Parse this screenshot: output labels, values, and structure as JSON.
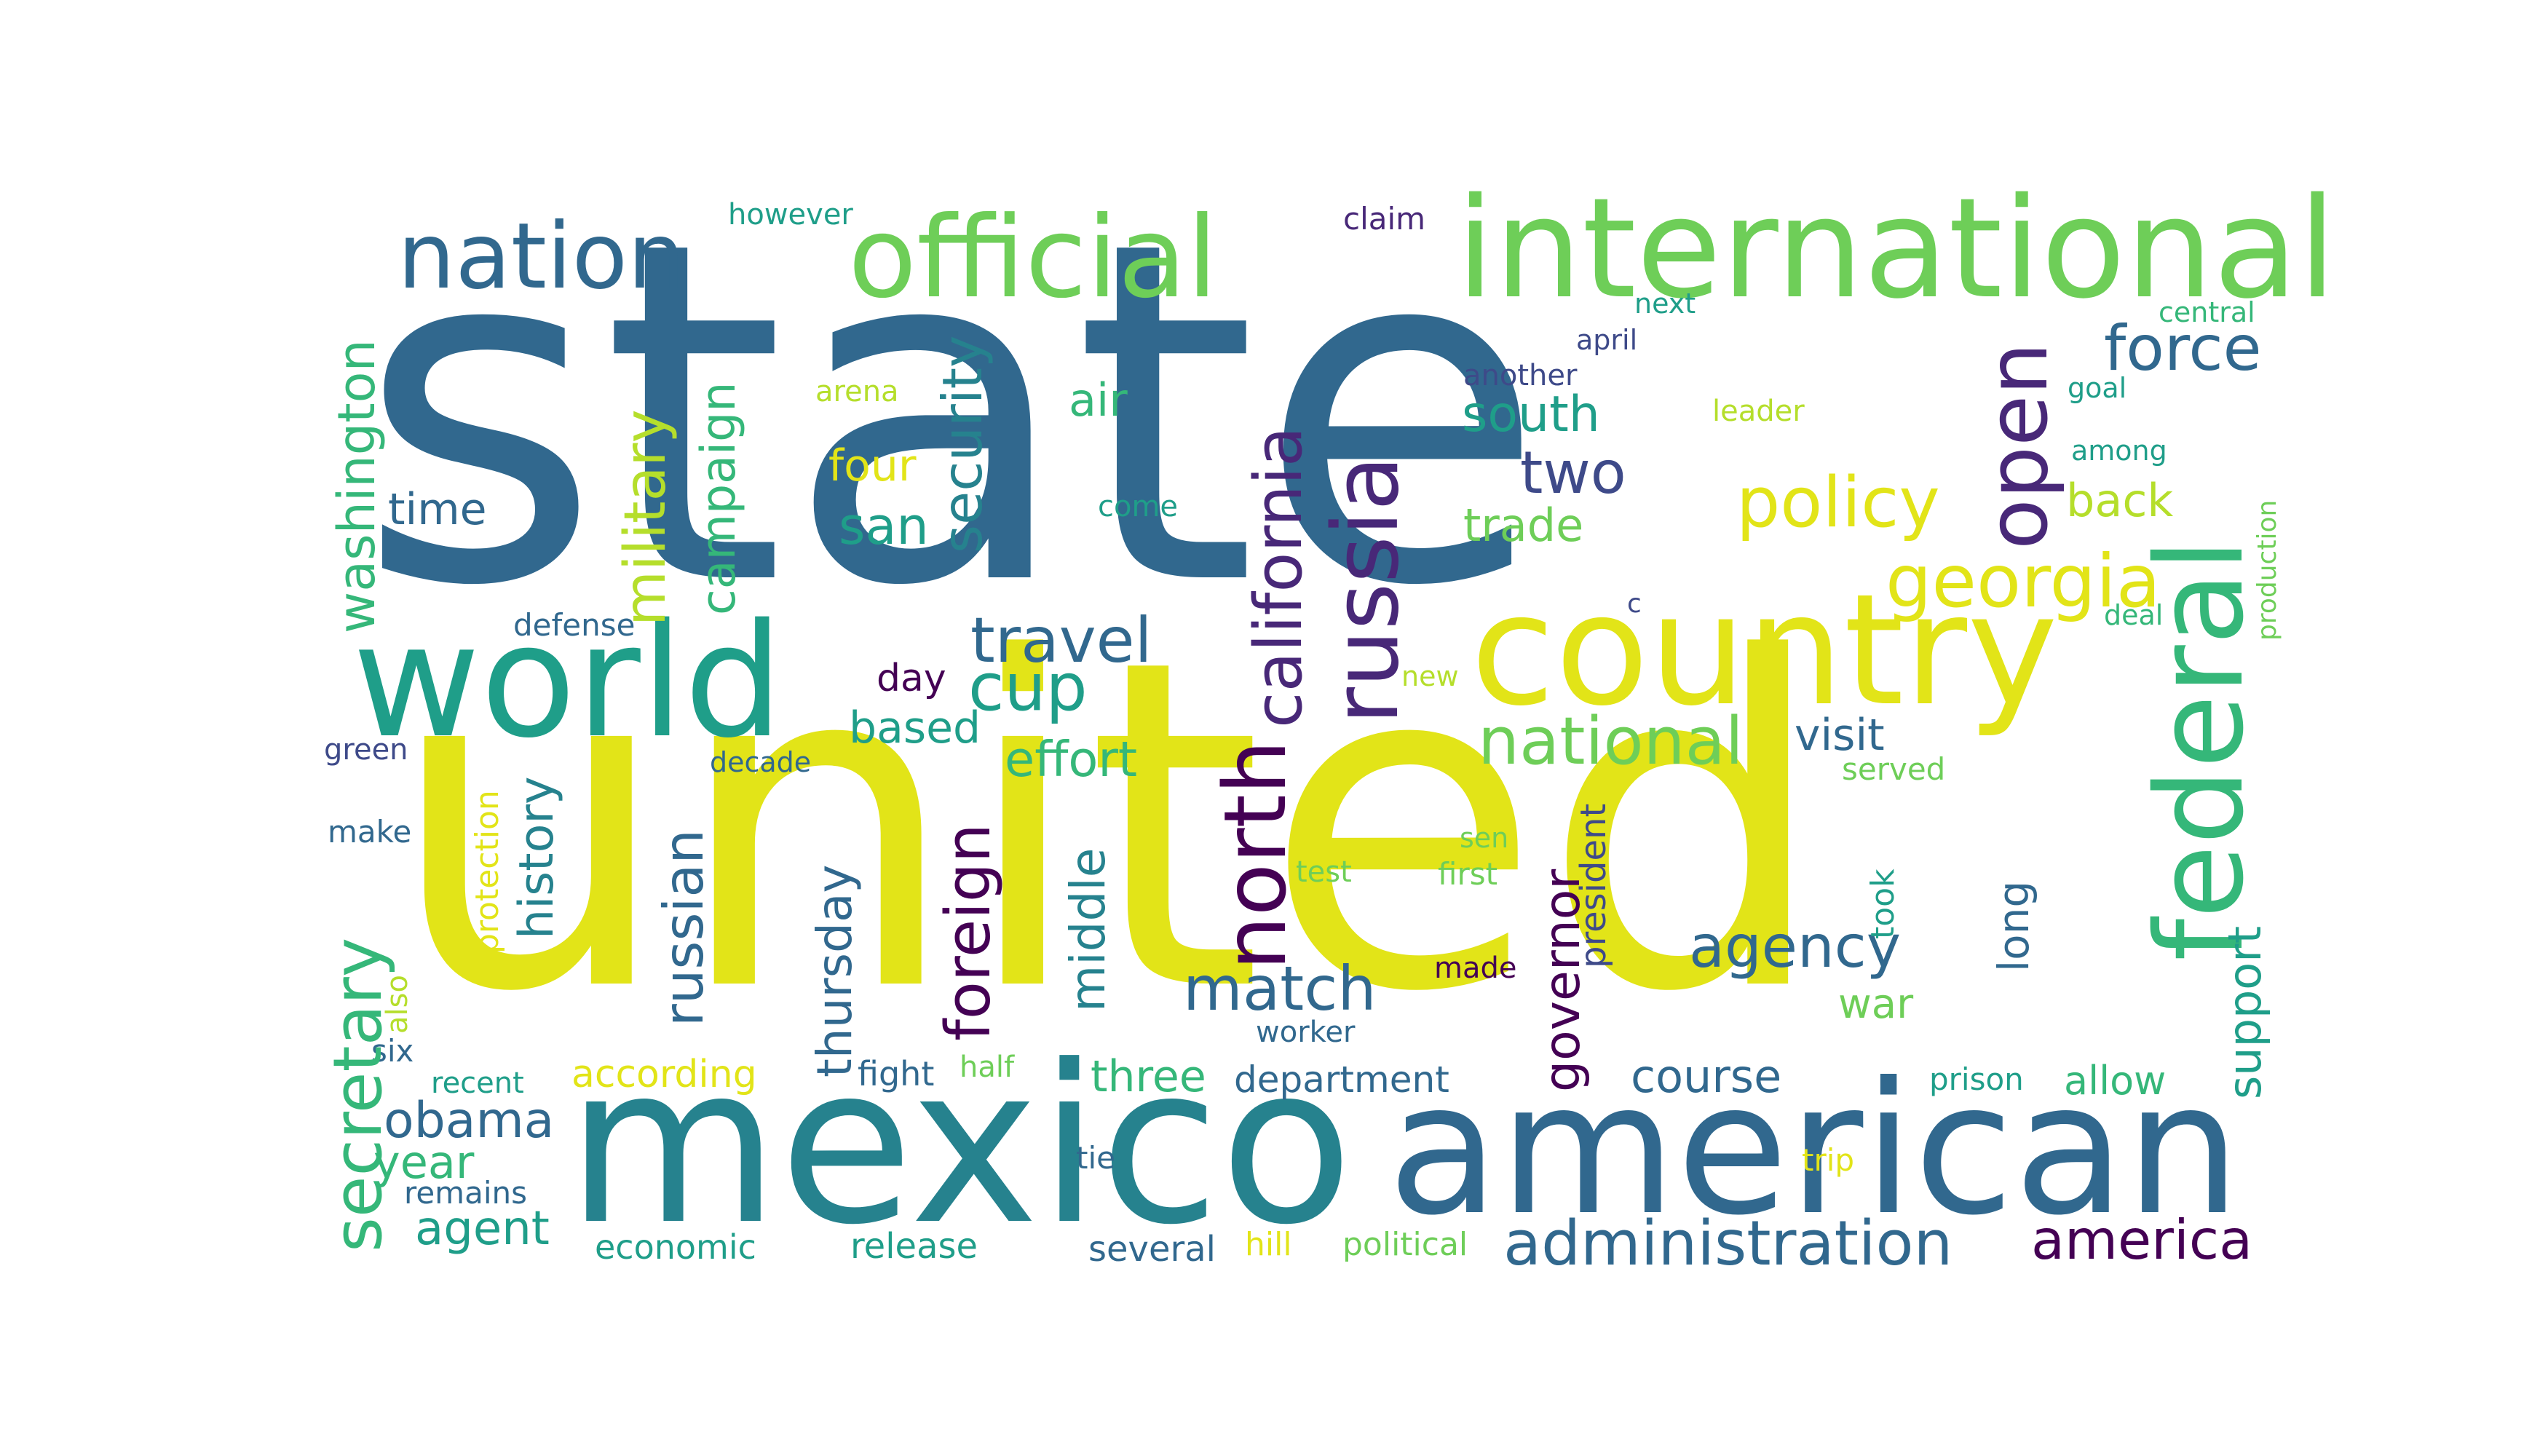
{
  "palette": {
    "c1": "#440154",
    "c2": "#482878",
    "c3": "#3e4a89",
    "c4": "#31688e",
    "c5": "#26828e",
    "c6": "#1f9e89",
    "c7": "#35b779",
    "c8": "#6ece58",
    "c9": "#b5de2b",
    "c10": "#e2e418"
  },
  "words": [
    {
      "text": "state",
      "color": "c4",
      "orient": "h"
    },
    {
      "text": "united",
      "color": "c10",
      "orient": "h"
    },
    {
      "text": "mexico",
      "color": "c5",
      "orient": "h"
    },
    {
      "text": "american",
      "color": "c4",
      "orient": "h"
    },
    {
      "text": "international",
      "color": "c8",
      "orient": "h"
    },
    {
      "text": "official",
      "color": "c8",
      "orient": "h"
    },
    {
      "text": "nation",
      "color": "c4",
      "orient": "h"
    },
    {
      "text": "world",
      "color": "c6",
      "orient": "h"
    },
    {
      "text": "country",
      "color": "c10",
      "orient": "h"
    },
    {
      "text": "federal",
      "color": "c7",
      "orient": "v"
    },
    {
      "text": "russia",
      "color": "c2",
      "orient": "v"
    },
    {
      "text": "north",
      "color": "c1",
      "orient": "v"
    },
    {
      "text": "open",
      "color": "c2",
      "orient": "v"
    },
    {
      "text": "california",
      "color": "c2",
      "orient": "v"
    },
    {
      "text": "georgia",
      "color": "c10",
      "orient": "h"
    },
    {
      "text": "administration",
      "color": "c4",
      "orient": "h"
    },
    {
      "text": "policy",
      "color": "c10",
      "orient": "h"
    },
    {
      "text": "national",
      "color": "c8",
      "orient": "h"
    },
    {
      "text": "force",
      "color": "c4",
      "orient": "h"
    },
    {
      "text": "travel",
      "color": "c4",
      "orient": "h"
    },
    {
      "text": "cup",
      "color": "c6",
      "orient": "h"
    },
    {
      "text": "match",
      "color": "c4",
      "orient": "h"
    },
    {
      "text": "agency",
      "color": "c4",
      "orient": "h"
    },
    {
      "text": "america",
      "color": "c1",
      "orient": "h"
    },
    {
      "text": "obama",
      "color": "c4",
      "orient": "h"
    },
    {
      "text": "two",
      "color": "c3",
      "orient": "h"
    },
    {
      "text": "san",
      "color": "c6",
      "orient": "h"
    },
    {
      "text": "effort",
      "color": "c7",
      "orient": "h"
    },
    {
      "text": "visit",
      "color": "c4",
      "orient": "h"
    },
    {
      "text": "course",
      "color": "c4",
      "orient": "h"
    },
    {
      "text": "south",
      "color": "c6",
      "orient": "h"
    },
    {
      "text": "trade",
      "color": "c8",
      "orient": "h"
    },
    {
      "text": "back",
      "color": "c9",
      "orient": "h"
    },
    {
      "text": "air",
      "color": "c7",
      "orient": "h"
    },
    {
      "text": "four",
      "color": "c10",
      "orient": "h"
    },
    {
      "text": "time",
      "color": "c4",
      "orient": "h"
    },
    {
      "text": "based",
      "color": "c6",
      "orient": "h"
    },
    {
      "text": "day",
      "color": "c1",
      "orient": "h"
    },
    {
      "text": "three",
      "color": "c7",
      "orient": "h"
    },
    {
      "text": "allow",
      "color": "c7",
      "orient": "h"
    },
    {
      "text": "year",
      "color": "c7",
      "orient": "h"
    },
    {
      "text": "agent",
      "color": "c6",
      "orient": "h"
    },
    {
      "text": "war",
      "color": "c8",
      "orient": "h"
    },
    {
      "text": "according",
      "color": "c10",
      "orient": "h"
    },
    {
      "text": "department",
      "color": "c4",
      "orient": "h"
    },
    {
      "text": "fight",
      "color": "c4",
      "orient": "h"
    },
    {
      "text": "release",
      "color": "c6",
      "orient": "h"
    },
    {
      "text": "several",
      "color": "c4",
      "orient": "h"
    },
    {
      "text": "economic",
      "color": "c6",
      "orient": "h"
    },
    {
      "text": "political",
      "color": "c8",
      "orient": "h"
    },
    {
      "text": "hill",
      "color": "c10",
      "orient": "h"
    },
    {
      "text": "remains",
      "color": "c4",
      "orient": "h"
    },
    {
      "text": "tie",
      "color": "c4",
      "orient": "h"
    },
    {
      "text": "trip",
      "color": "c10",
      "orient": "h"
    },
    {
      "text": "prison",
      "color": "c6",
      "orient": "h"
    },
    {
      "text": "recent",
      "color": "c6",
      "orient": "h"
    },
    {
      "text": "half",
      "color": "c8",
      "orient": "h"
    },
    {
      "text": "six",
      "color": "c4",
      "orient": "h"
    },
    {
      "text": "worker",
      "color": "c4",
      "orient": "h"
    },
    {
      "text": "made",
      "color": "c1",
      "orient": "h"
    },
    {
      "text": "test",
      "color": "c8",
      "orient": "h"
    },
    {
      "text": "first",
      "color": "c8",
      "orient": "h"
    },
    {
      "text": "sen",
      "color": "c8",
      "orient": "h"
    },
    {
      "text": "served",
      "color": "c8",
      "orient": "h"
    },
    {
      "text": "decade",
      "color": "c4",
      "orient": "h"
    },
    {
      "text": "make",
      "color": "c4",
      "orient": "h"
    },
    {
      "text": "green",
      "color": "c3",
      "orient": "h"
    },
    {
      "text": "defense",
      "color": "c4",
      "orient": "h"
    },
    {
      "text": "new",
      "color": "c9",
      "orient": "h"
    },
    {
      "text": "c",
      "color": "c3",
      "orient": "h"
    },
    {
      "text": "deal",
      "color": "c7",
      "orient": "h"
    },
    {
      "text": "among",
      "color": "c6",
      "orient": "h"
    },
    {
      "text": "goal",
      "color": "c6",
      "orient": "h"
    },
    {
      "text": "central",
      "color": "c7",
      "orient": "h"
    },
    {
      "text": "leader",
      "color": "c9",
      "orient": "h"
    },
    {
      "text": "april",
      "color": "c3",
      "orient": "h"
    },
    {
      "text": "another",
      "color": "c3",
      "orient": "h"
    },
    {
      "text": "next",
      "color": "c6",
      "orient": "h"
    },
    {
      "text": "claim",
      "color": "c2",
      "orient": "h"
    },
    {
      "text": "however",
      "color": "c6",
      "orient": "h"
    },
    {
      "text": "arena",
      "color": "c9",
      "orient": "h"
    },
    {
      "text": "come",
      "color": "c6",
      "orient": "h"
    },
    {
      "text": "washington",
      "color": "c7",
      "orient": "v"
    },
    {
      "text": "military",
      "color": "c9",
      "orient": "v"
    },
    {
      "text": "campaign",
      "color": "c7",
      "orient": "v"
    },
    {
      "text": "security",
      "color": "c5",
      "orient": "v"
    },
    {
      "text": "secretary",
      "color": "c7",
      "orient": "v"
    },
    {
      "text": "history",
      "color": "c5",
      "orient": "v"
    },
    {
      "text": "russian",
      "color": "c4",
      "orient": "v"
    },
    {
      "text": "thursday",
      "color": "c4",
      "orient": "v"
    },
    {
      "text": "foreign",
      "color": "c1",
      "orient": "v"
    },
    {
      "text": "middle",
      "color": "c5",
      "orient": "v"
    },
    {
      "text": "governor",
      "color": "c1",
      "orient": "v"
    },
    {
      "text": "long",
      "color": "c4",
      "orient": "v"
    },
    {
      "text": "support",
      "color": "c6",
      "orient": "v"
    },
    {
      "text": "president",
      "color": "c3",
      "orient": "v"
    },
    {
      "text": "took",
      "color": "c6",
      "orient": "v"
    },
    {
      "text": "protection",
      "color": "c10",
      "orient": "v"
    },
    {
      "text": "also",
      "color": "c9",
      "orient": "v"
    },
    {
      "text": "production",
      "color": "c8",
      "orient": "v"
    }
  ]
}
